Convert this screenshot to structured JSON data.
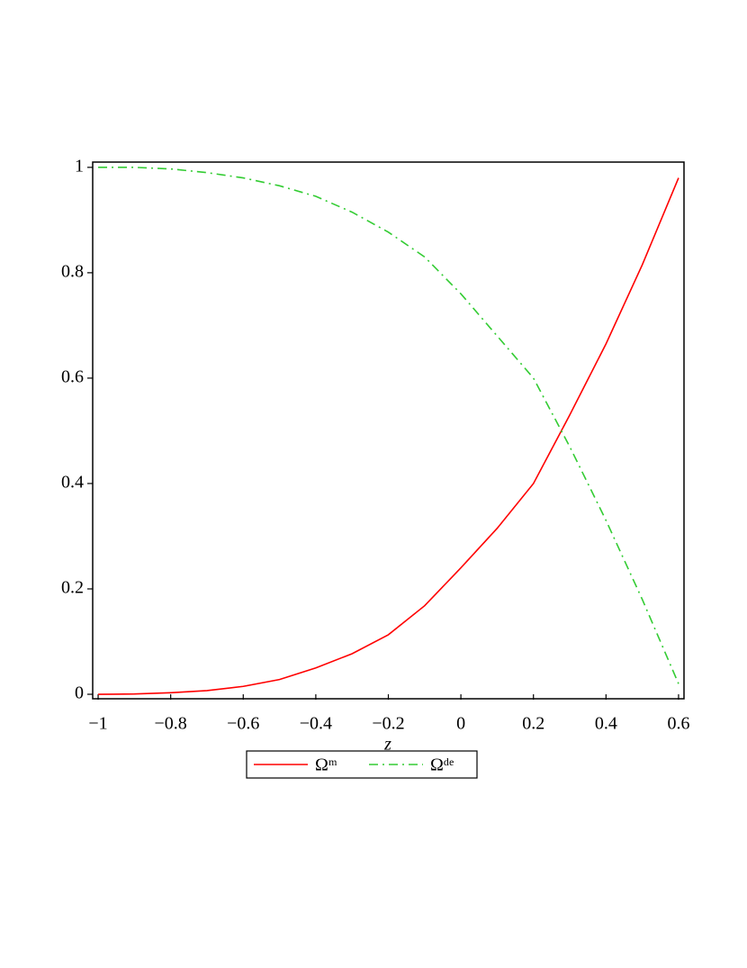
{
  "chart_data": {
    "type": "line",
    "x_label": "z",
    "x": [
      -1,
      -0.9,
      -0.8,
      -0.7,
      -0.6,
      -0.5,
      -0.4,
      -0.3,
      -0.2,
      -0.1,
      0,
      0.1,
      0.2,
      0.3,
      0.4,
      0.5,
      0.6
    ],
    "series": [
      {
        "name": "Ωᵐ",
        "color": "#ff0000",
        "dash": "solid",
        "values": [
          0,
          0.0005,
          0.003,
          0.007,
          0.015,
          0.028,
          0.05,
          0.077,
          0.113,
          0.168,
          0.24,
          0.315,
          0.4,
          0.53,
          0.665,
          0.815,
          0.98
        ]
      },
      {
        "name": "Ωᵈᵉ",
        "color": "#33cc33",
        "dash": "dashdot",
        "values": [
          1,
          1,
          0.997,
          0.99,
          0.98,
          0.965,
          0.945,
          0.915,
          0.877,
          0.83,
          0.76,
          0.68,
          0.6,
          0.47,
          0.33,
          0.18,
          0.02
        ]
      }
    ],
    "xlim": [
      -1.015,
      0.615
    ],
    "ylim": [
      -0.0085,
      1.01
    ],
    "xticks": [
      {
        "value": -1,
        "label": "−1"
      },
      {
        "value": -0.8,
        "label": "−0.8"
      },
      {
        "value": -0.6,
        "label": "−0.6"
      },
      {
        "value": -0.4,
        "label": "−0.4"
      },
      {
        "value": -0.2,
        "label": "−0.2"
      },
      0,
      0.2,
      0.4,
      0.6
    ],
    "yticks": [
      0,
      0.2,
      0.4,
      0.6,
      0.8,
      1
    ],
    "grid": false,
    "legend": "bottom"
  }
}
